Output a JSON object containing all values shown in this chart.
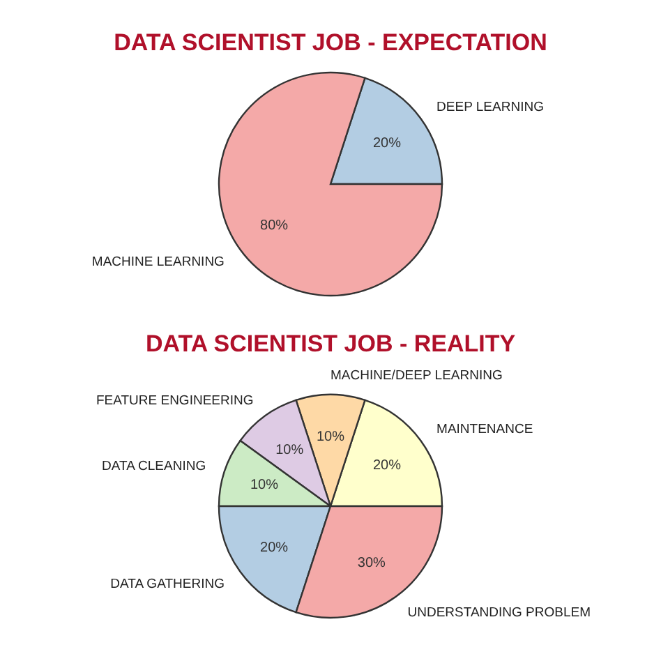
{
  "chart_data": [
    {
      "type": "pie",
      "title": "DATA SCIENTIST JOB - EXPECTATION",
      "categories": [
        "DEEP LEARNING",
        "MACHINE LEARNING"
      ],
      "values": [
        20,
        80
      ],
      "colors": [
        "#b3cde3",
        "#f4a9a8"
      ],
      "value_labels": [
        "20%",
        "80%"
      ]
    },
    {
      "type": "pie",
      "title": "DATA SCIENTIST JOB - REALITY",
      "categories": [
        "MAINTENANCE",
        "MACHINE/DEEP LEARNING",
        "FEATURE ENGINEERING",
        "DATA CLEANING",
        "DATA GATHERING",
        "UNDERSTANDING PROBLEM"
      ],
      "values": [
        20,
        10,
        10,
        10,
        20,
        30
      ],
      "colors": [
        "#ffffcc",
        "#fed9a6",
        "#decbe4",
        "#ccebc5",
        "#b3cde3",
        "#f4a9a8"
      ],
      "value_labels": [
        "20%",
        "10%",
        "10%",
        "10%",
        "20%",
        "30%"
      ]
    }
  ]
}
